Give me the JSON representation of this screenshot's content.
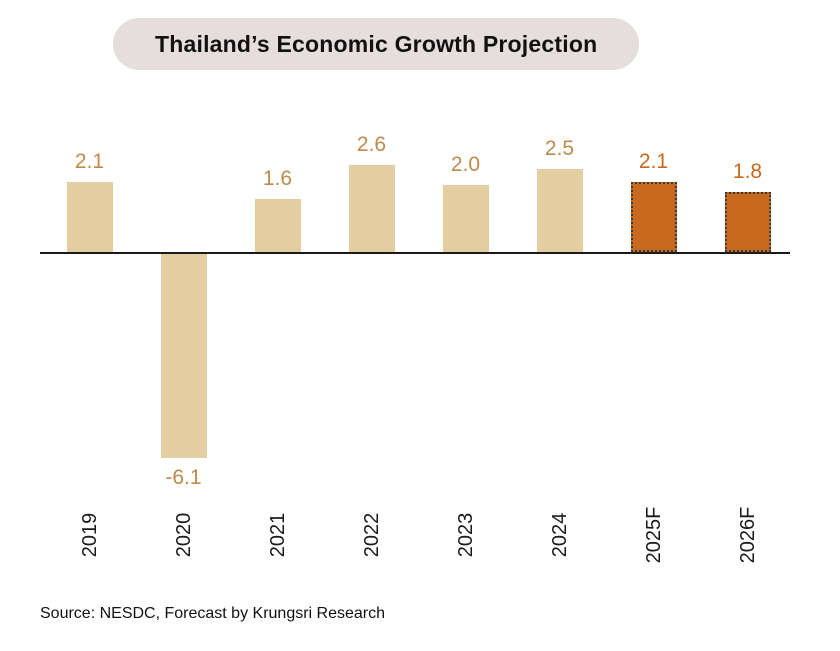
{
  "title": "Thailand’s Economic Growth Projection",
  "source": "Source: NESDC, Forecast by Krungsri Research",
  "chart_data": {
    "type": "bar",
    "title": "Thailand’s Economic Growth Projection",
    "categories": [
      "2019",
      "2020",
      "2021",
      "2022",
      "2023",
      "2024",
      "2025F",
      "2026F"
    ],
    "values": [
      2.1,
      -6.1,
      1.6,
      2.6,
      2.0,
      2.5,
      2.1,
      1.8
    ],
    "data_labels": [
      "2.1",
      "-6.1",
      "1.6",
      "2.6",
      "2.0",
      "2.5",
      "2.1",
      "1.8"
    ],
    "forecast_flags": [
      false,
      false,
      false,
      false,
      false,
      false,
      true,
      true
    ],
    "xlabel": "",
    "ylabel": "",
    "ylim": [
      -7,
      3
    ],
    "grid": false,
    "legend": "none",
    "colors": {
      "actual_bar": "#e4cda1",
      "forecast_bar": "#c8691e",
      "actual_label": "#bd8a4b",
      "forecast_label": "#c8691e",
      "axis_line": "#1a1a1a",
      "title_pill_bg": "#e6dddd"
    }
  }
}
